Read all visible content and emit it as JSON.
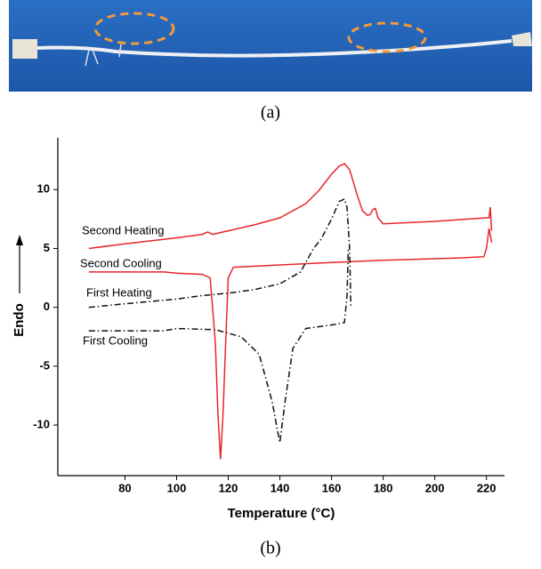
{
  "panel_labels": {
    "top": "(a)",
    "bottom": "(b)"
  },
  "chart_data": {
    "type": "line",
    "x_label": "Temperature (°C)",
    "y_label": "Endo",
    "xlim": [
      54,
      227
    ],
    "ylim": [
      -14.3,
      14.4
    ],
    "xticks": [
      80,
      100,
      120,
      140,
      160,
      180,
      200,
      220
    ],
    "yticks": [
      -10,
      -5,
      0,
      5,
      10
    ],
    "grid": false,
    "series": [
      {
        "name": "Second Heating",
        "color": "#e8262a",
        "linestyle": "solid",
        "x": [
          66,
          80,
          100,
          110,
          112,
          114,
          120,
          130,
          140,
          150,
          155,
          160,
          163,
          165,
          167,
          170,
          172,
          174,
          175,
          176,
          177,
          178,
          180,
          200,
          220,
          221,
          221.5,
          222
        ],
        "values": [
          5.0,
          5.4,
          5.9,
          6.2,
          6.4,
          6.2,
          6.5,
          7.0,
          7.6,
          8.8,
          9.9,
          11.3,
          12.0,
          12.2,
          11.7,
          9.5,
          8.2,
          7.8,
          7.9,
          8.3,
          8.4,
          7.6,
          7.1,
          7.3,
          7.6,
          7.6,
          8.5,
          6.5
        ]
      },
      {
        "name": "Second Cooling",
        "color": "#e8262a",
        "linestyle": "solid",
        "x": [
          66,
          95,
          100,
          110,
          113,
          115,
          116,
          117,
          118,
          119,
          120,
          122,
          140,
          160,
          180,
          210,
          219,
          220,
          221,
          222
        ],
        "values": [
          3.0,
          3.0,
          2.9,
          2.8,
          2.5,
          -3,
          -9,
          -12.9,
          -9,
          -3,
          2.5,
          3.4,
          3.6,
          3.8,
          4.0,
          4.2,
          4.3,
          5,
          6.7,
          5.5
        ]
      },
      {
        "name": "First Heating",
        "color": "#111111",
        "linestyle": "dashdot",
        "x": [
          66,
          80,
          100,
          110,
          120,
          130,
          140,
          148,
          153,
          156,
          160,
          163,
          165,
          166,
          167,
          167.5
        ],
        "values": [
          0,
          0.3,
          0.7,
          1.0,
          1.2,
          1.5,
          2.0,
          3.0,
          5.0,
          5.8,
          7.5,
          9.0,
          9.2,
          8.5,
          5,
          0
        ]
      },
      {
        "name": "First Cooling",
        "color": "#111111",
        "linestyle": "dashdot",
        "x": [
          66,
          95,
          100,
          115,
          125,
          132,
          137,
          140,
          142,
          145,
          150,
          160,
          165,
          166,
          166.5
        ],
        "values": [
          -2.0,
          -2.0,
          -1.8,
          -1.9,
          -2.5,
          -4,
          -8,
          -11.5,
          -8,
          -3.5,
          -1.8,
          -1.5,
          -1.3,
          1,
          5
        ]
      }
    ]
  }
}
